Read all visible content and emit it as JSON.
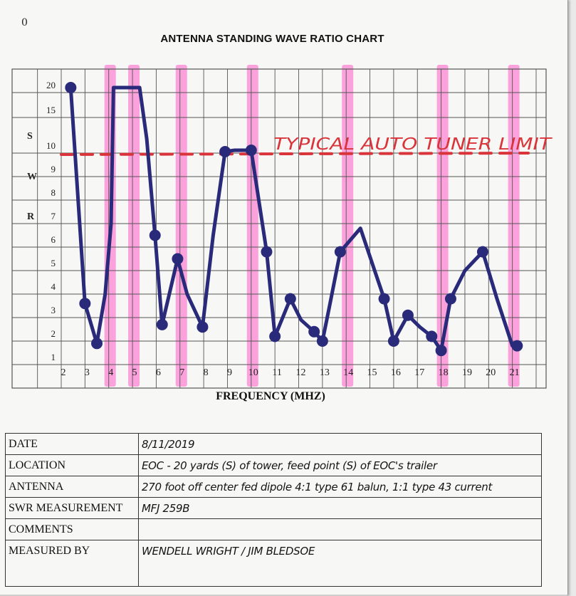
{
  "page_number": "0",
  "colors": {
    "trace": "#2a2a7a",
    "limit_line": "#d9343a",
    "highlight": "#ff5cc8",
    "grid": "#555555"
  },
  "chart_data": {
    "type": "line",
    "title": "ANTENNA STANDING WAVE RATIO CHART",
    "xlabel": "FREQUENCY (MHZ)",
    "ylabel": [
      "S",
      "W",
      "R"
    ],
    "x_ticks": [
      "2",
      "3",
      "4",
      "5",
      "6",
      "7",
      "8",
      "9",
      "10",
      "11",
      "12",
      "13",
      "14",
      "15",
      "16",
      "17",
      "18",
      "19",
      "20",
      "21"
    ],
    "y_ticks": [
      "1",
      "2",
      "3",
      "4",
      "5",
      "6",
      "7",
      "8",
      "9",
      "10",
      "15",
      "20"
    ],
    "grid": true,
    "series": [
      {
        "points": [
          {
            "x": 2.4,
            "y": 21
          },
          {
            "x": 3.0,
            "y": 3.6
          },
          {
            "x": 3.5,
            "y": 1.9
          },
          {
            "x": 3.85,
            "y": 4
          },
          {
            "x": 4.1,
            "y": 7
          },
          {
            "x": 4.2,
            "y": 21
          },
          {
            "x": 5.0,
            "y": 21
          },
          {
            "x": 5.3,
            "y": 21
          },
          {
            "x": 5.6,
            "y": 12
          },
          {
            "x": 5.95,
            "y": 6.5
          },
          {
            "x": 6.25,
            "y": 2.7
          },
          {
            "x": 6.9,
            "y": 5.5
          },
          {
            "x": 7.3,
            "y": 4
          },
          {
            "x": 7.95,
            "y": 2.6
          },
          {
            "x": 8.4,
            "y": 6.5
          },
          {
            "x": 8.9,
            "y": 10.2
          },
          {
            "x": 9.3,
            "y": 10.4
          },
          {
            "x": 10.0,
            "y": 10.4
          },
          {
            "x": 10.65,
            "y": 5.8
          },
          {
            "x": 11.0,
            "y": 2.2
          },
          {
            "x": 11.65,
            "y": 3.8
          },
          {
            "x": 12.1,
            "y": 2.9
          },
          {
            "x": 12.65,
            "y": 2.4
          },
          {
            "x": 13.0,
            "y": 2.0
          },
          {
            "x": 13.3,
            "y": 3.5
          },
          {
            "x": 13.75,
            "y": 5.8
          },
          {
            "x": 14.6,
            "y": 6.8
          },
          {
            "x": 15.2,
            "y": 5
          },
          {
            "x": 15.6,
            "y": 3.8
          },
          {
            "x": 16.0,
            "y": 2.0
          },
          {
            "x": 16.6,
            "y": 3.1
          },
          {
            "x": 17.1,
            "y": 2.6
          },
          {
            "x": 17.6,
            "y": 2.2
          },
          {
            "x": 18.0,
            "y": 1.6
          },
          {
            "x": 18.4,
            "y": 3.8
          },
          {
            "x": 19.0,
            "y": 5
          },
          {
            "x": 19.75,
            "y": 5.8
          },
          {
            "x": 20.35,
            "y": 3.8
          },
          {
            "x": 21.0,
            "y": 1.8
          },
          {
            "x": 21.3,
            "y": 1.8
          }
        ]
      }
    ],
    "marker_points": [
      {
        "x": 2.4,
        "y": 21
      },
      {
        "x": 3.0,
        "y": 3.6
      },
      {
        "x": 3.5,
        "y": 1.9
      },
      {
        "x": 5.95,
        "y": 6.5
      },
      {
        "x": 6.25,
        "y": 2.7
      },
      {
        "x": 6.9,
        "y": 5.5
      },
      {
        "x": 7.95,
        "y": 2.6
      },
      {
        "x": 8.9,
        "y": 10.2
      },
      {
        "x": 10.0,
        "y": 10.4
      },
      {
        "x": 10.65,
        "y": 5.8
      },
      {
        "x": 11.0,
        "y": 2.2
      },
      {
        "x": 11.65,
        "y": 3.8
      },
      {
        "x": 12.65,
        "y": 2.4
      },
      {
        "x": 13.0,
        "y": 2.0
      },
      {
        "x": 13.75,
        "y": 5.8
      },
      {
        "x": 15.6,
        "y": 3.8
      },
      {
        "x": 16.0,
        "y": 2.0
      },
      {
        "x": 16.6,
        "y": 3.1
      },
      {
        "x": 17.6,
        "y": 2.2
      },
      {
        "x": 18.0,
        "y": 1.6
      },
      {
        "x": 18.4,
        "y": 3.8
      },
      {
        "x": 19.75,
        "y": 5.8
      },
      {
        "x": 21.2,
        "y": 1.8
      }
    ],
    "limit_line": {
      "y": 10,
      "label": "TYPICAL AUTO TUNER LIMIT"
    },
    "highlight_bands_x": [
      4.0,
      5.0,
      7.0,
      10.0,
      14.0,
      18.0,
      21.0
    ]
  },
  "info_table": [
    {
      "label": "DATE",
      "value": "8/11/2019"
    },
    {
      "label": "LOCATION",
      "value": "EOC - 20 yards (S) of tower, feed point (S) of EOC's trailer"
    },
    {
      "label": "ANTENNA",
      "value": "270 foot off center fed dipole 4:1 type 61 balun, 1:1 type 43 current"
    },
    {
      "label": "SWR MEASUREMENT",
      "value": "MFJ 259B"
    },
    {
      "label": "COMMENTS",
      "value": ""
    },
    {
      "label": "MEASURED BY",
      "value": "WENDELL WRIGHT / JIM BLEDSOE"
    }
  ]
}
